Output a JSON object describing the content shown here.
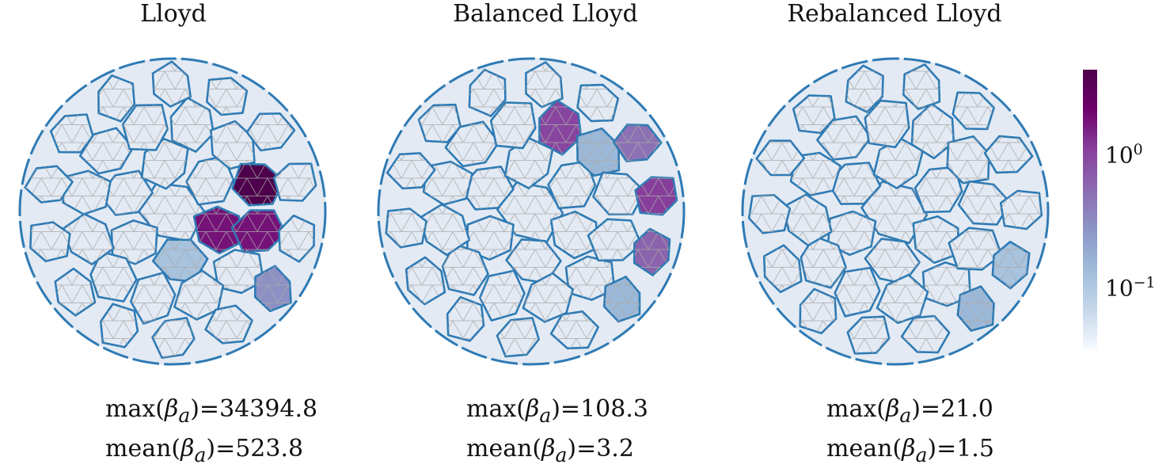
{
  "panels": [
    {
      "title": "Lloyd",
      "max_label": "max(",
      "max_value": "34394.8",
      "mean_label": "mean(",
      "mean_value": "523.8",
      "highlights": [
        {
          "ring": 1,
          "index": 0,
          "level": 0.82
        },
        {
          "ring": 2,
          "index": 11,
          "level": 0.82
        },
        {
          "ring": 2,
          "index": 12,
          "level": 0.82
        },
        {
          "ring": 2,
          "index": 10,
          "level": 1.0
        },
        {
          "ring": 1,
          "index": 11,
          "level": 1.0
        },
        {
          "ring": 3,
          "index": 13,
          "level": 0.45
        },
        {
          "ring": 1,
          "index": 1,
          "level": 0.25
        },
        {
          "ring": 1,
          "index": 10,
          "level": 0.25
        },
        {
          "ring": 0,
          "index": 4,
          "level": 0.2
        }
      ]
    },
    {
      "title": "Balanced Lloyd",
      "max_label": "max(",
      "max_value": "108.3",
      "mean_label": "mean(",
      "mean_value": "3.2",
      "highlights": [
        {
          "ring": 3,
          "index": 12,
          "level": 0.6
        },
        {
          "ring": 3,
          "index": 11,
          "level": 0.72
        },
        {
          "ring": 2,
          "index": 8,
          "level": 0.7
        },
        {
          "ring": 3,
          "index": 10,
          "level": 0.55
        },
        {
          "ring": 2,
          "index": 9,
          "level": 0.3
        },
        {
          "ring": 1,
          "index": 8,
          "level": 0.3
        },
        {
          "ring": 3,
          "index": 13,
          "level": 0.3
        },
        {
          "ring": 1,
          "index": 9,
          "level": 0.25
        }
      ]
    },
    {
      "title": "Rebalanced Lloyd",
      "max_label": "max(",
      "max_value": "21.0",
      "mean_label": "mean(",
      "mean_value": "1.5",
      "highlights": [
        {
          "ring": 2,
          "index": 13,
          "level": 0.62
        },
        {
          "ring": 2,
          "index": 12,
          "level": 0.7
        },
        {
          "ring": 1,
          "index": 11,
          "level": 0.6
        },
        {
          "ring": 1,
          "index": 12,
          "level": 0.35
        },
        {
          "ring": 1,
          "index": 10,
          "level": 0.3
        },
        {
          "ring": 3,
          "index": 13,
          "level": 0.3
        },
        {
          "ring": 3,
          "index": 12,
          "level": 0.25
        },
        {
          "ring": 0,
          "index": 5,
          "level": 0.3
        }
      ]
    }
  ],
  "stat_symbol": "β",
  "stat_subscript": "a",
  "colorbar": {
    "colors": [
      "#f7fbff",
      "#c6d7ea",
      "#9ebcda",
      "#8c96c6",
      "#8c6bb1",
      "#88419d",
      "#6e016b",
      "#4d004b"
    ],
    "tick_labels": [
      {
        "base": "10",
        "exp": "0"
      },
      {
        "base": "10",
        "exp": "−1"
      }
    ]
  },
  "colors": {
    "edge": "#2e7ab4",
    "mesh": "#a9a9a9",
    "cell_fill": "#e3eaf3"
  }
}
